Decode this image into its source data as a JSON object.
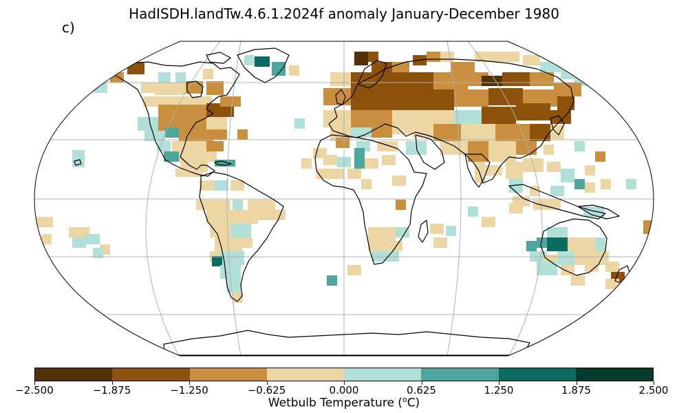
{
  "title": "HadISDH.landTw.4.6.1.2024f anomaly January-December 1980",
  "panel_label": "c)",
  "colorbar": {
    "label_prefix": "Wetbulb Temperature (",
    "label_sup": "o",
    "label_suffix": "C)",
    "ticks": [
      "−2.500",
      "−1.875",
      "−1.250",
      "−0.625",
      "0.000",
      "0.625",
      "1.250",
      "1.875",
      "2.500"
    ],
    "colors": [
      "#543005",
      "#8c510a",
      "#c98f3f",
      "#ecd6a4",
      "#b1e0d9",
      "#4da69c",
      "#0a6c60",
      "#003c30"
    ]
  },
  "map": {
    "projection": "Robinson",
    "gridlines": true,
    "legend_classes": [
      "-2.500 to -1.875",
      "-1.875 to -1.250",
      "-1.250 to -0.625",
      "-0.625 to 0.000",
      "0.000 to 0.625",
      "0.625 to 1.250",
      "1.250 to 1.875",
      "1.875 to 2.500"
    ]
  }
}
